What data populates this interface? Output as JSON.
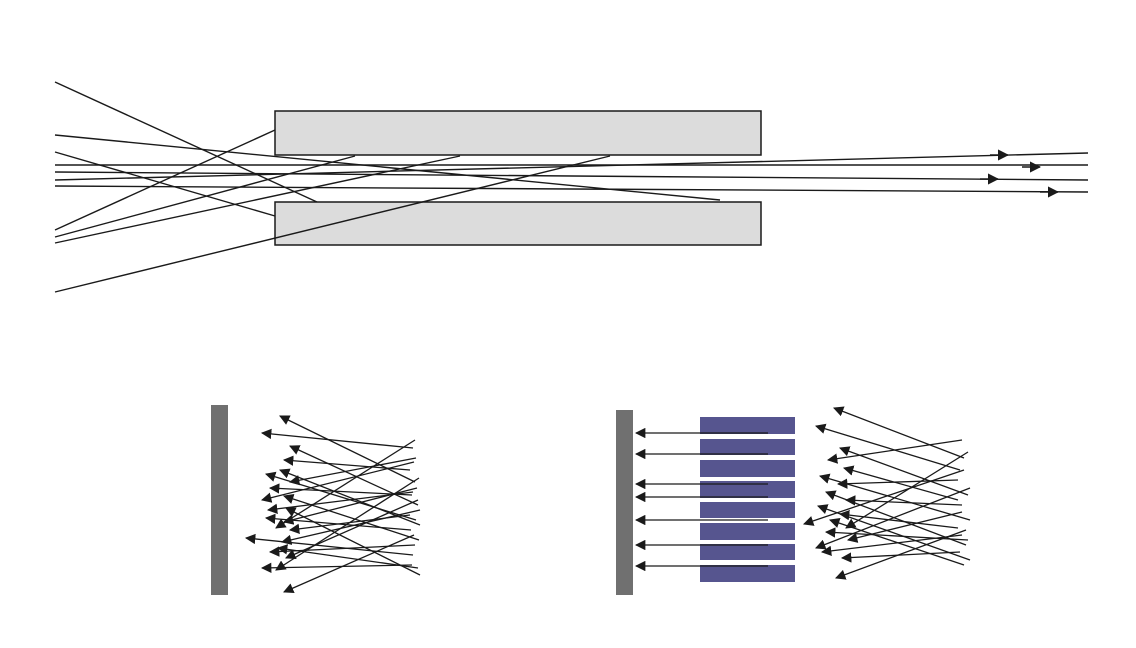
{
  "diagram": {
    "colors": {
      "background": "#ffffff",
      "ray": "#1a1a1a",
      "capillary_fill": "#dcdcdc",
      "capillary_stroke": "#1a1a1a",
      "detector": "#707070",
      "collimator_fill": "#56558f"
    },
    "panels": [
      {
        "id": "capillary-transmission",
        "elements": [
          "upper-capillary-wall",
          "lower-capillary-wall",
          "scattered-rays",
          "transmitted-rays"
        ]
      },
      {
        "id": "uncollimated-detector",
        "elements": [
          "detector-plate",
          "divergent-rays"
        ]
      },
      {
        "id": "collimated-detector",
        "elements": [
          "detector-plate",
          "collimator-channels",
          "parallel-rays",
          "blocked-divergent-rays"
        ]
      }
    ]
  }
}
